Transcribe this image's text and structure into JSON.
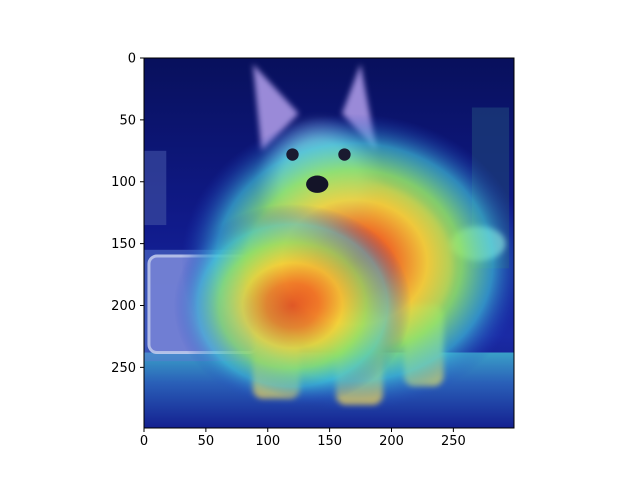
{
  "chart_data": {
    "type": "heatmap",
    "title": "",
    "xlabel": "",
    "ylabel": "",
    "xlim": [
      0,
      299
    ],
    "ylim": [
      299,
      0
    ],
    "x_ticks": [
      {
        "value": 0,
        "label": "0"
      },
      {
        "value": 50,
        "label": "50"
      },
      {
        "value": 100,
        "label": "100"
      },
      {
        "value": 150,
        "label": "150"
      },
      {
        "value": 200,
        "label": "200"
      },
      {
        "value": 250,
        "label": "250"
      }
    ],
    "y_ticks": [
      {
        "value": 0,
        "label": "0"
      },
      {
        "value": 50,
        "label": "50"
      },
      {
        "value": 100,
        "label": "100"
      },
      {
        "value": 150,
        "label": "150"
      },
      {
        "value": 200,
        "label": "200"
      },
      {
        "value": 250,
        "label": "250"
      }
    ],
    "image_subject": "dog",
    "colormap": "jet",
    "colorbar": false,
    "grid": false,
    "hotspots": [
      {
        "x": 170,
        "y": 165,
        "intensity": 1.0
      },
      {
        "x": 120,
        "y": 200,
        "intensity": 0.6
      }
    ]
  }
}
